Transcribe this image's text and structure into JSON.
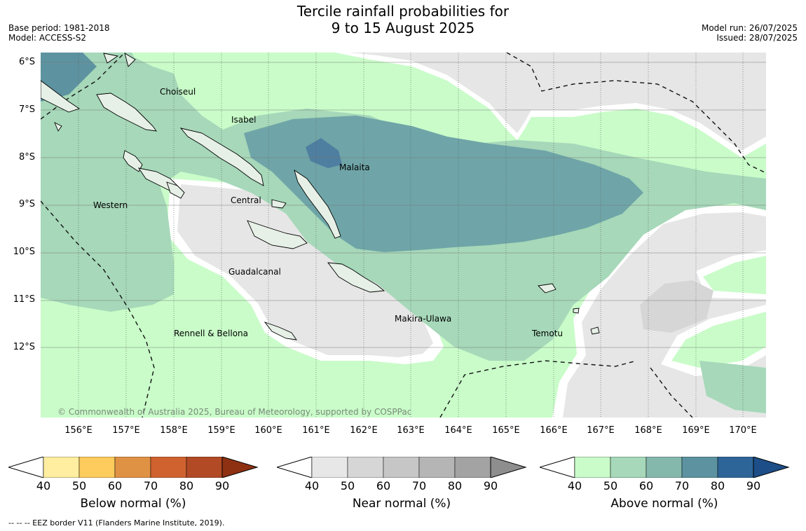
{
  "header": {
    "title_line1": "Tercile rainfall probabilities for",
    "title_line2": "9 to 15 August 2025",
    "base_period": "Base period: 1981-2018",
    "model": "Model: ACCESS-S2",
    "model_run": "Model run: 26/07/2025",
    "issued": "Issued: 28/07/2025"
  },
  "map": {
    "latitude_labels": [
      "6°S",
      "7°S",
      "8°S",
      "9°S",
      "10°S",
      "11°S",
      "12°S"
    ],
    "longitude_labels": [
      "156°E",
      "157°E",
      "158°E",
      "159°E",
      "160°E",
      "161°E",
      "162°E",
      "163°E",
      "164°E",
      "165°E",
      "166°E",
      "167°E",
      "168°E",
      "169°E",
      "170°E"
    ],
    "regions": [
      "Choiseul",
      "Isabel",
      "Malaita",
      "Western",
      "Central",
      "Guadalcanal",
      "Makira-Ulawa",
      "Rennell & Bellona",
      "Temotu"
    ],
    "copyright": "© Commonwealth of Australia 2025, Bureau of Meteorology, supported by COSPPac"
  },
  "legends": [
    {
      "title": "Below normal (%)",
      "ticks": [
        "40",
        "50",
        "60",
        "70",
        "80",
        "90"
      ],
      "colors": [
        "#ffeda0",
        "#fecc5c",
        "#e09244",
        "#d0622f",
        "#b14a25",
        "#8e3113"
      ]
    },
    {
      "title": "Near normal (%)",
      "ticks": [
        "40",
        "50",
        "60",
        "70",
        "80",
        "90"
      ],
      "colors": [
        "#e7e7e7",
        "#d6d6d6",
        "#c6c6c6",
        "#b5b5b5",
        "#a3a3a3",
        "#8e8e8e"
      ]
    },
    {
      "title": "Above normal (%)",
      "ticks": [
        "40",
        "50",
        "60",
        "70",
        "80",
        "90"
      ],
      "colors": [
        "#c9fcc9",
        "#a6d8b9",
        "#84b8ad",
        "#5d93a0",
        "#2e6598",
        "#1d4e88"
      ]
    }
  ],
  "footnote": "--  --  -- EEZ border V11 (Flanders Marine Institute, 2019)."
}
